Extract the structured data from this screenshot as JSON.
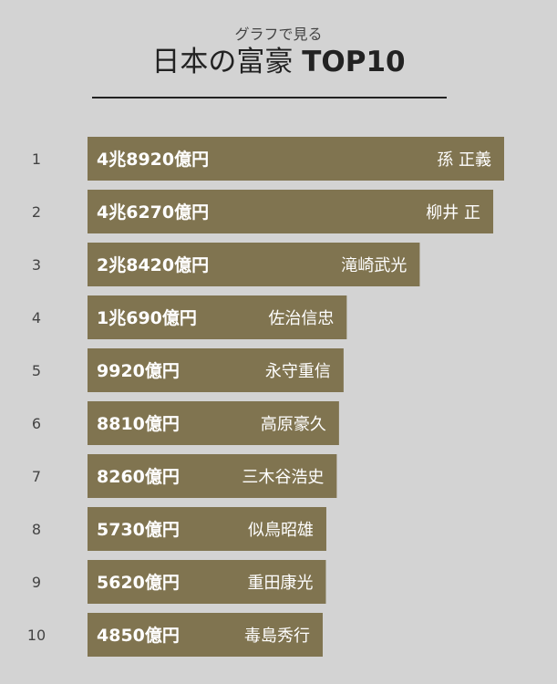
{
  "header": {
    "subtitle": "グラフで見る",
    "title_main": "日本の富豪",
    "title_top": "TOP10"
  },
  "colors": {
    "background": "#d3d3d3",
    "bar": "#807450",
    "bar_text": "#ffffff",
    "rank_text": "#444444"
  },
  "chart_data": {
    "type": "bar",
    "orientation": "horizontal",
    "title": "日本の富豪 TOP10",
    "subtitle": "グラフで見る",
    "unit": "億円",
    "ranks": [
      "1",
      "2",
      "3",
      "4",
      "5",
      "6",
      "7",
      "8",
      "9",
      "10"
    ],
    "categories": [
      "孫 正義",
      "柳井 正",
      "滝崎武光",
      "佐治信忠",
      "永守重信",
      "高原豪久",
      "三木谷浩史",
      "似鳥昭雄",
      "重田康光",
      "毒島秀行"
    ],
    "values": [
      48920,
      46270,
      28420,
      10690,
      9920,
      8810,
      8260,
      5730,
      5620,
      4850
    ],
    "value_labels": [
      "4兆8920億円",
      "4兆6270億円",
      "2兆8420億円",
      "1兆690億円",
      "9920億円",
      "8810億円",
      "8260億円",
      "5730億円",
      "5620億円",
      "4850億円"
    ],
    "grid": false,
    "legend": "none"
  }
}
